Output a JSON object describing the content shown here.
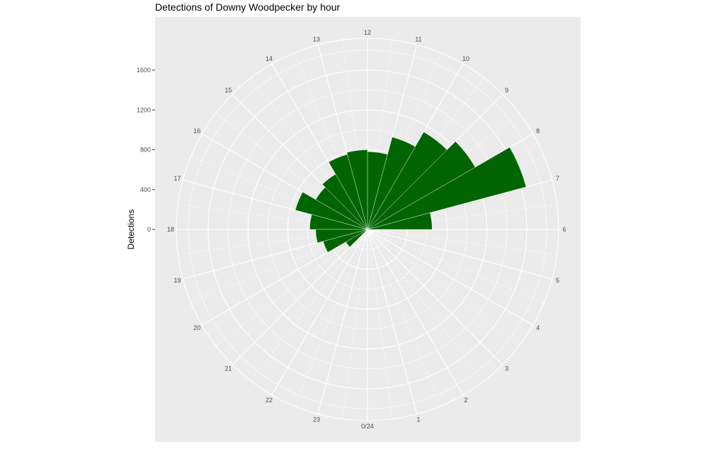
{
  "chart_data": {
    "type": "bar",
    "coord": "polar",
    "title": "Detections of Downy Woodpecker by hour",
    "xlabel": "",
    "ylabel": "Detections",
    "hour_labels": [
      "0/24",
      "1",
      "2",
      "3",
      "4",
      "5",
      "6",
      "7",
      "8",
      "9",
      "10",
      "11",
      "12",
      "13",
      "14",
      "15",
      "16",
      "17",
      "18",
      "19",
      "20",
      "21",
      "22",
      "23"
    ],
    "y_ticks": [
      0,
      400,
      800,
      1200,
      1600
    ],
    "y_tick_labels": [
      "0",
      "400",
      "800",
      "1200",
      "1600"
    ],
    "ylim": [
      0,
      1920
    ],
    "categories": [
      "0",
      "1",
      "2",
      "3",
      "4",
      "5",
      "6",
      "7",
      "8",
      "9",
      "10",
      "11",
      "12",
      "13",
      "14",
      "15",
      "16",
      "17",
      "18",
      "19",
      "20",
      "21",
      "22",
      "23"
    ],
    "values": [
      0,
      0,
      0,
      0,
      0,
      0,
      650,
      1650,
      1250,
      1130,
      960,
      780,
      800,
      780,
      640,
      600,
      750,
      580,
      520,
      460,
      250,
      0,
      0,
      0
    ],
    "bar_color": "#006400",
    "panel_color": "#ebebeb",
    "grid": true
  }
}
